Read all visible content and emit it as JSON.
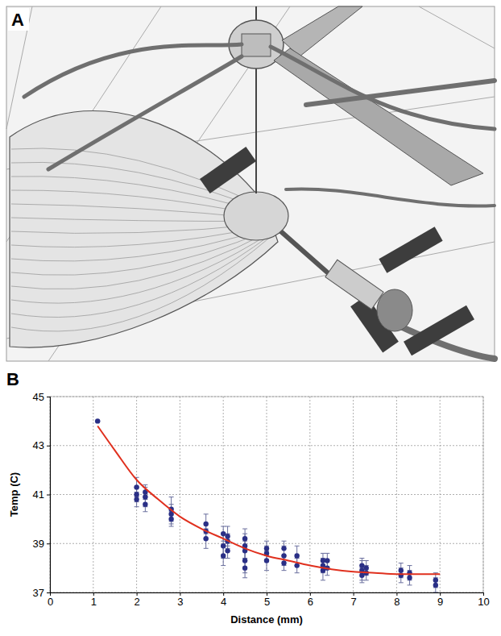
{
  "figure": {
    "panel_labels": [
      "A",
      "B"
    ]
  },
  "chart_data": {
    "type": "scatter",
    "x_label": "Distance (mm)",
    "y_label": "Temp (C)",
    "xlim": [
      0,
      10
    ],
    "xticks": [
      0,
      1,
      2,
      3,
      4,
      5,
      6,
      7,
      8,
      9,
      10
    ],
    "ylim": [
      37,
      45
    ],
    "yticks": [
      37,
      39,
      41,
      43,
      45
    ],
    "grid": true,
    "series": [
      {
        "type": "scatter",
        "color": "#2a2f86",
        "marker": "circle",
        "x": [
          1.1,
          2.0,
          2.0,
          2.0,
          2.2,
          2.2,
          2.2,
          2.8,
          2.8,
          2.8,
          3.6,
          3.6,
          3.6,
          4.0,
          4.0,
          4.0,
          4.1,
          4.1,
          4.1,
          4.5,
          4.5,
          4.5,
          4.5,
          4.5,
          5.0,
          5.0,
          5.0,
          5.4,
          5.4,
          5.4,
          5.7,
          5.7,
          6.3,
          6.3,
          6.3,
          6.4,
          6.4,
          7.2,
          7.2,
          7.2,
          7.3,
          7.3,
          8.1,
          8.1,
          8.3,
          8.3,
          8.9,
          8.9
        ],
        "values": [
          44.0,
          41.3,
          41.0,
          40.8,
          41.1,
          40.9,
          40.6,
          40.4,
          40.2,
          40.0,
          39.8,
          39.5,
          39.2,
          39.4,
          38.9,
          38.5,
          39.3,
          39.1,
          38.7,
          39.2,
          38.9,
          38.7,
          38.3,
          38.0,
          38.8,
          38.6,
          38.3,
          38.8,
          38.5,
          38.2,
          38.5,
          38.1,
          38.3,
          38.1,
          37.9,
          38.3,
          38.0,
          38.1,
          37.9,
          37.7,
          38.0,
          37.8,
          37.9,
          37.7,
          37.8,
          37.6,
          37.5,
          37.3
        ],
        "errors": [
          0,
          0.4,
          0.3,
          0.3,
          0.3,
          0.4,
          0.3,
          0.5,
          0.4,
          0.3,
          0.4,
          0.3,
          0.4,
          0.3,
          0.5,
          0.4,
          0.4,
          0.3,
          0.3,
          0.4,
          0.5,
          0.4,
          0.5,
          0.4,
          0.3,
          0.3,
          0.4,
          0.3,
          0.4,
          0.3,
          0.4,
          0.3,
          0.3,
          0.3,
          0.4,
          0.3,
          0.3,
          0.3,
          0.4,
          0.3,
          0.3,
          0.3,
          0.3,
          0.3,
          0.3,
          0.3,
          0.3,
          0.3
        ]
      },
      {
        "type": "line",
        "color": "#e0301e",
        "line_style": "solid",
        "x": [
          1.1,
          1.5,
          2,
          2.5,
          3,
          3.5,
          4,
          4.5,
          5,
          5.5,
          6,
          6.5,
          7,
          7.5,
          8,
          8.5,
          9
        ],
        "values": [
          43.8,
          42.8,
          41.6,
          40.8,
          40.1,
          39.6,
          39.2,
          38.8,
          38.5,
          38.3,
          38.1,
          37.95,
          37.85,
          37.8,
          37.75,
          37.75,
          37.75
        ]
      }
    ]
  }
}
